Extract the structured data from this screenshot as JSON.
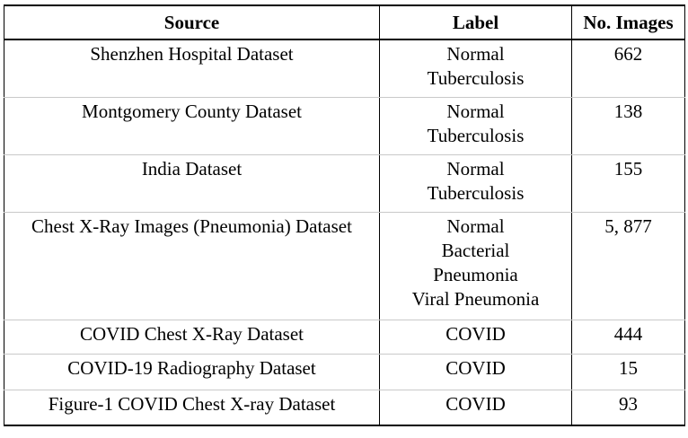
{
  "table": {
    "headers": {
      "source": "Source",
      "label": "Label",
      "count": "No. Images"
    },
    "rows": [
      {
        "source": "Shenzhen Hospital Dataset",
        "labels": [
          "Normal",
          "Tuberculosis"
        ],
        "count": "662"
      },
      {
        "source": "Montgomery County Dataset",
        "labels": [
          "Normal",
          "Tuberculosis"
        ],
        "count": "138"
      },
      {
        "source": "India Dataset",
        "labels": [
          "Normal",
          "Tuberculosis"
        ],
        "count": "155"
      },
      {
        "source": "Chest X-Ray Images (Pneumonia) Dataset",
        "labels": [
          "Normal",
          "Bacterial",
          "Pneumonia",
          "Viral Pneumonia"
        ],
        "count": "5, 877"
      },
      {
        "source": "COVID Chest X-Ray Dataset",
        "labels": [
          "COVID"
        ],
        "count": "444"
      },
      {
        "source": "COVID-19 Radiography Dataset",
        "labels": [
          "COVID"
        ],
        "count": "15"
      },
      {
        "source": "Figure-1 COVID Chest X-ray Dataset",
        "labels": [
          "COVID"
        ],
        "count": "93"
      }
    ]
  }
}
